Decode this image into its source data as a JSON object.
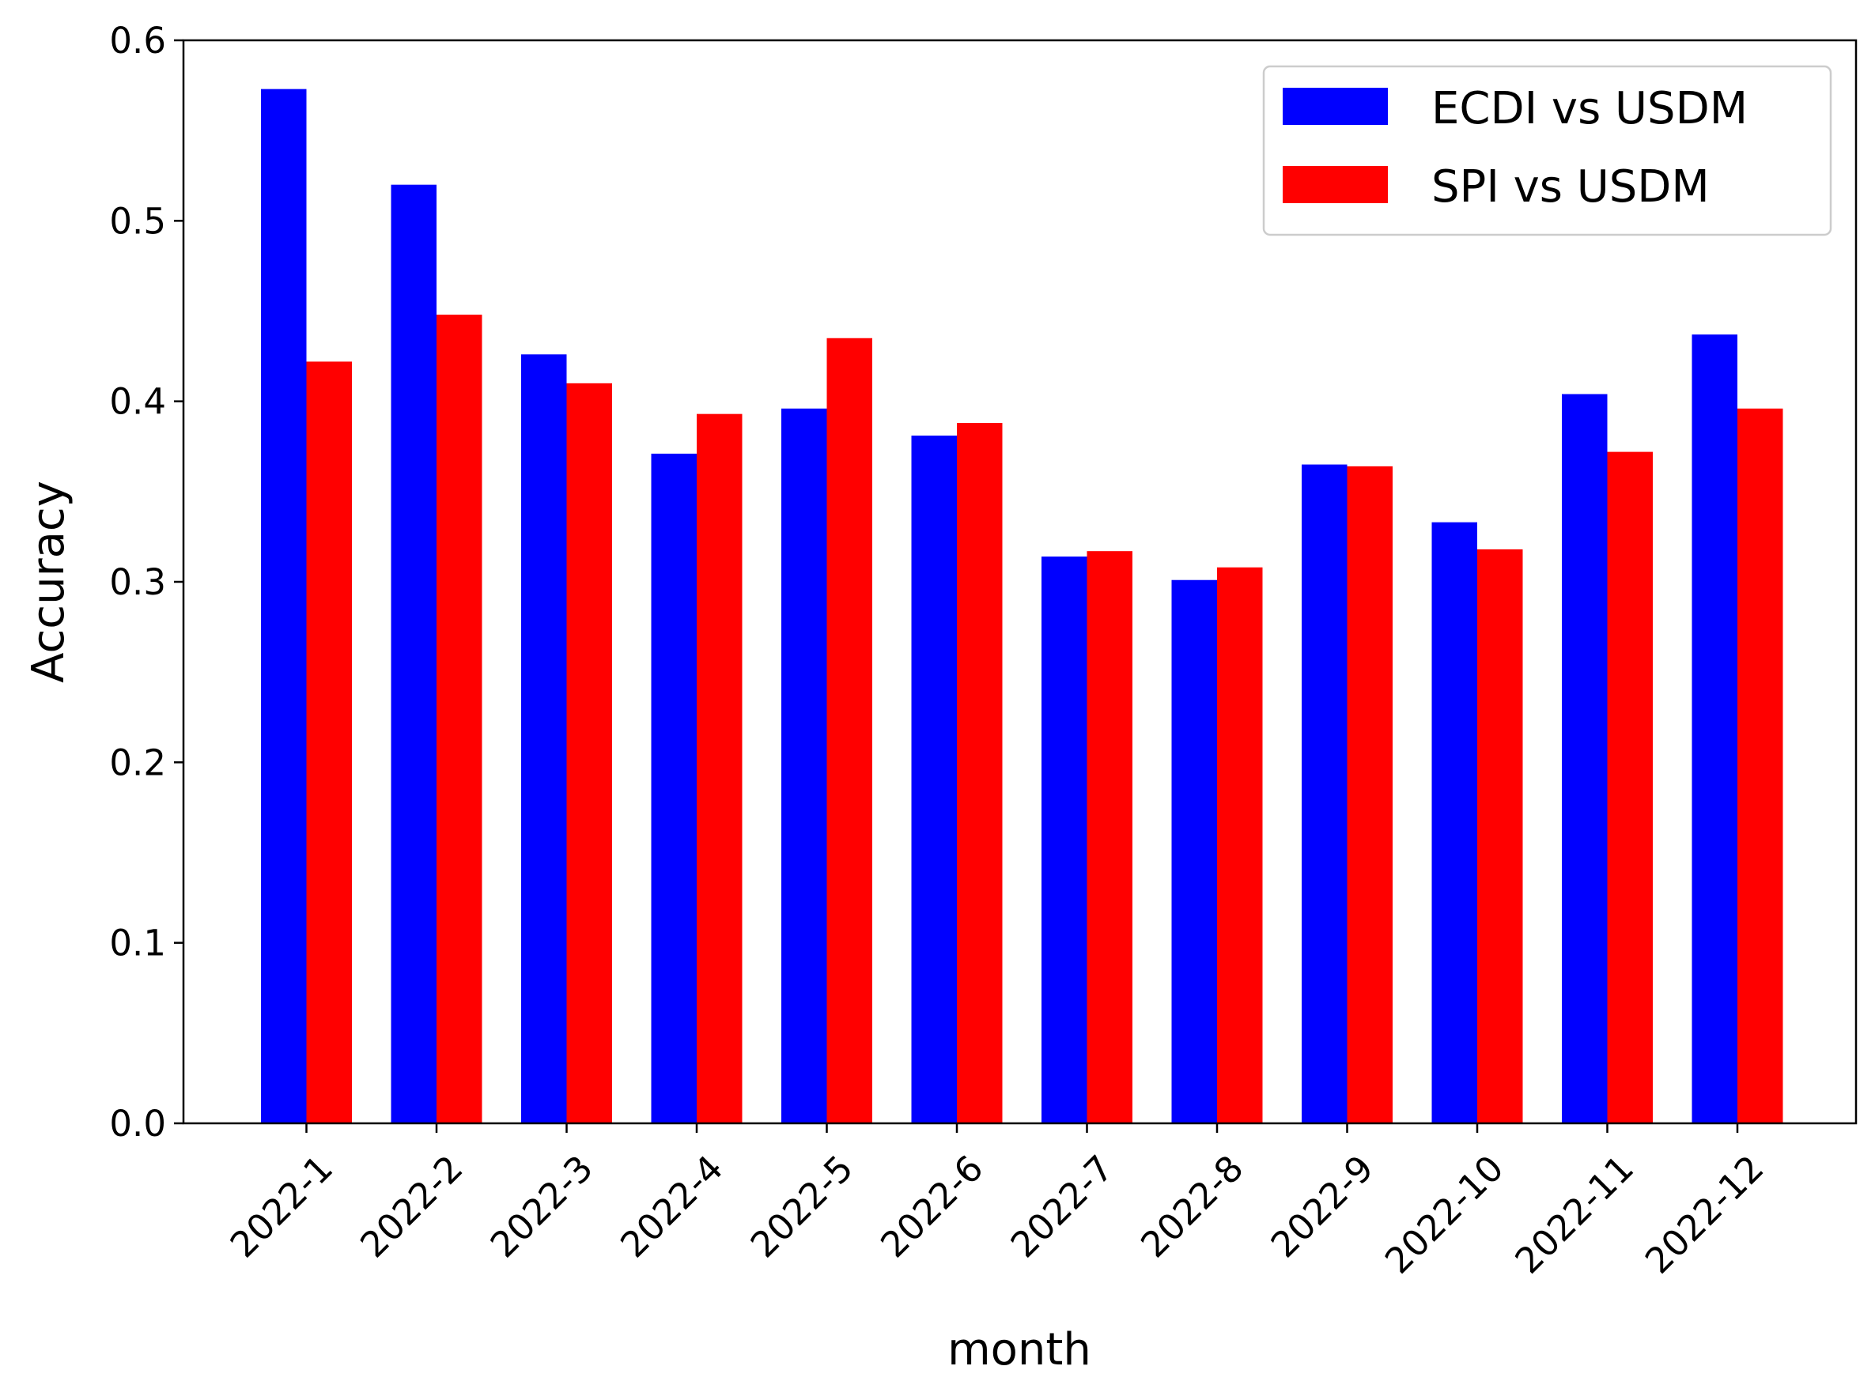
{
  "chart_data": {
    "type": "bar",
    "title": "",
    "xlabel": "month",
    "ylabel": "Accuracy",
    "ylim": [
      0,
      0.6
    ],
    "yticks": [
      "0.0",
      "0.1",
      "0.2",
      "0.3",
      "0.4",
      "0.5",
      "0.6"
    ],
    "categories": [
      "2022-1",
      "2022-2",
      "2022-3",
      "2022-4",
      "2022-5",
      "2022-6",
      "2022-7",
      "2022-8",
      "2022-9",
      "2022-10",
      "2022-11",
      "2022-12"
    ],
    "series": [
      {
        "name": "ECDI vs USDM",
        "color": "#0000ff",
        "values": [
          0.573,
          0.52,
          0.426,
          0.371,
          0.396,
          0.381,
          0.314,
          0.301,
          0.365,
          0.333,
          0.404,
          0.437
        ]
      },
      {
        "name": "SPI vs USDM",
        "color": "#ff0000",
        "values": [
          0.422,
          0.448,
          0.41,
          0.393,
          0.435,
          0.388,
          0.317,
          0.308,
          0.364,
          0.318,
          0.372,
          0.396
        ]
      }
    ],
    "grid": false,
    "legend_position": "top-right"
  }
}
